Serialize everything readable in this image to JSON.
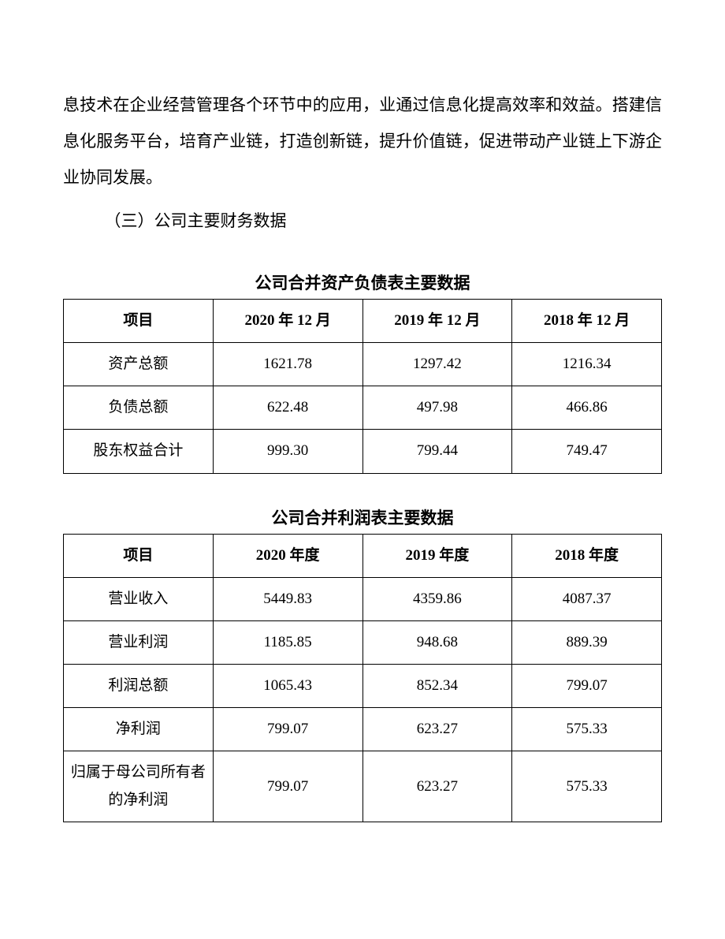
{
  "paragraph1": "息技术在企业经营管理各个环节中的应用，业通过信息化提高效率和效益。搭建信息化服务平台，培育产业链，打造创新链，提升价值链，促进带动产业链上下游企业协同发展。",
  "sectionHeading": "（三）公司主要财务数据",
  "table1": {
    "title": "公司合并资产负债表主要数据",
    "headers": [
      "项目",
      "2020 年 12 月",
      "2019 年 12 月",
      "2018 年 12 月"
    ],
    "rows": [
      [
        "资产总额",
        "1621.78",
        "1297.42",
        "1216.34"
      ],
      [
        "负债总额",
        "622.48",
        "497.98",
        "466.86"
      ],
      [
        "股东权益合计",
        "999.30",
        "799.44",
        "749.47"
      ]
    ]
  },
  "table2": {
    "title": "公司合并利润表主要数据",
    "headers": [
      "项目",
      "2020 年度",
      "2019 年度",
      "2018 年度"
    ],
    "rows": [
      [
        "营业收入",
        "5449.83",
        "4359.86",
        "4087.37"
      ],
      [
        "营业利润",
        "1185.85",
        "948.68",
        "889.39"
      ],
      [
        "利润总额",
        "1065.43",
        "852.34",
        "799.07"
      ],
      [
        "净利润",
        "799.07",
        "623.27",
        "575.33"
      ],
      [
        "归属于母公司所有者的净利润",
        "799.07",
        "623.27",
        "575.33"
      ]
    ]
  }
}
